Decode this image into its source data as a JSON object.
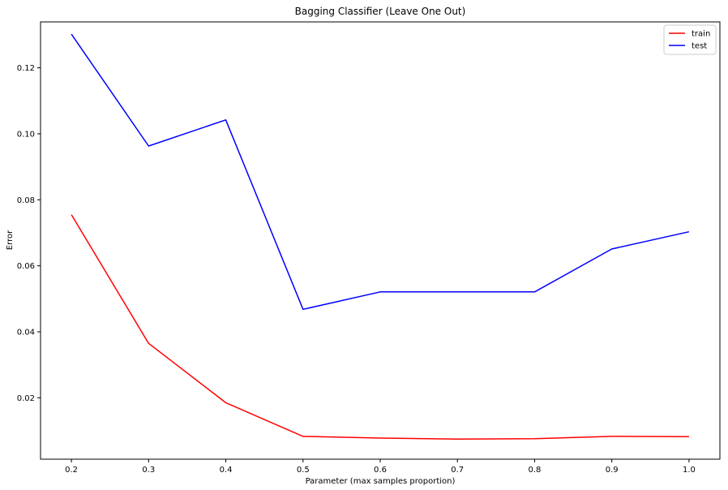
{
  "chart_data": {
    "type": "line",
    "title": "Bagging Classifier (Leave One Out)",
    "xlabel": "Parameter (max samples proportion)",
    "ylabel": "Error",
    "x": [
      0.2,
      0.3,
      0.4,
      0.5,
      0.6,
      0.7,
      0.8,
      0.9,
      1.0
    ],
    "x_tick_labels": [
      "0.2",
      "0.3",
      "0.4",
      "0.5",
      "0.6",
      "0.7",
      "0.8",
      "0.9",
      "1.0"
    ],
    "y_ticks": [
      0.02,
      0.04,
      0.06,
      0.08,
      0.1,
      0.12
    ],
    "y_tick_labels": [
      "0.02",
      "0.04",
      "0.06",
      "0.08",
      "0.10",
      "0.12"
    ],
    "xlim": [
      0.16,
      1.04
    ],
    "ylim": [
      0.0014,
      0.1339
    ],
    "grid": false,
    "legend_position": "top-right",
    "series": [
      {
        "name": "train",
        "color": "#ff0000",
        "values": [
          0.0755,
          0.0365,
          0.0185,
          0.0083,
          0.0078,
          0.0075,
          0.0076,
          0.0083,
          0.0082
        ]
      },
      {
        "name": "test",
        "color": "#0000ff",
        "values": [
          0.1302,
          0.0963,
          0.1042,
          0.0468,
          0.0521,
          0.0521,
          0.0521,
          0.0651,
          0.0703
        ]
      }
    ]
  }
}
